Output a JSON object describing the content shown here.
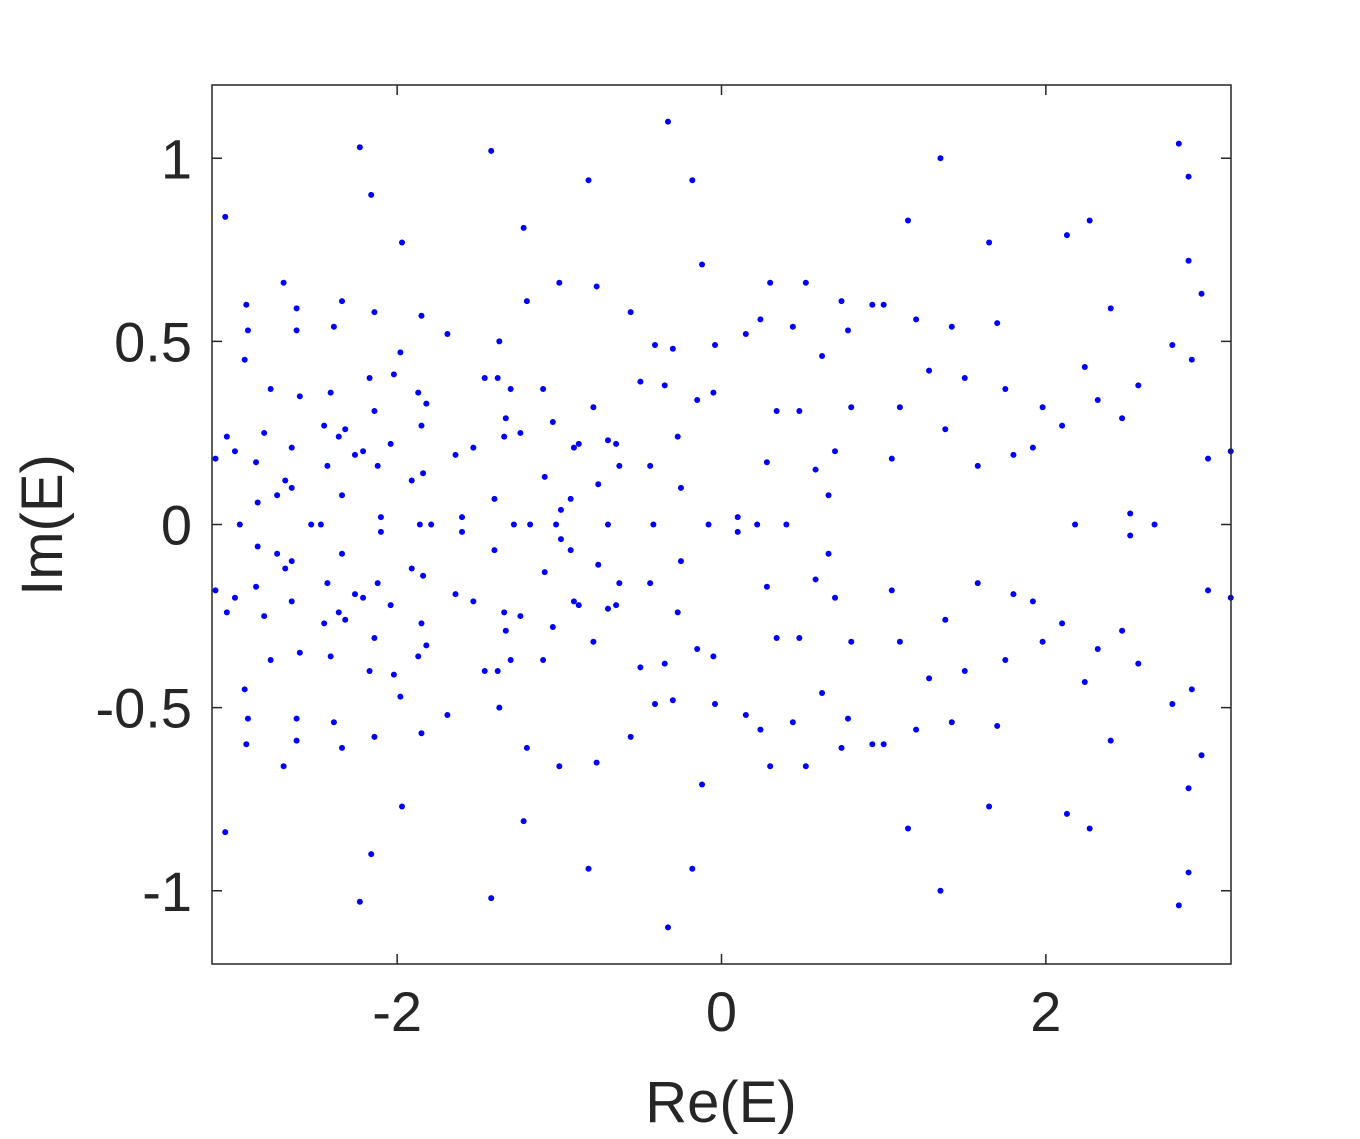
{
  "chart_data": {
    "type": "scatter",
    "title": "",
    "xlabel": "Re(E)",
    "ylabel": "Im(E)",
    "xlim": [
      -3.1416,
      3.1416
    ],
    "ylim": [
      -1.2,
      1.2
    ],
    "xticks": [
      -2,
      0,
      2
    ],
    "yticks": [
      -1,
      -0.5,
      0,
      0.5,
      1
    ],
    "xtick_labels": [
      "-2",
      "0",
      "2"
    ],
    "ytick_labels": [
      "-1",
      "-0.5",
      "0",
      "0.5",
      "1"
    ],
    "grid": false,
    "legend": "none",
    "marker_color": "#0000ff",
    "axis_color": "#262626",
    "series": [
      {
        "values": [
          [
            -3.12,
            0.18
          ],
          [
            -3.12,
            -0.18
          ],
          [
            -3.06,
            0.84
          ],
          [
            -3.06,
            -0.84
          ],
          [
            -3.05,
            0.24
          ],
          [
            -3.05,
            -0.24
          ],
          [
            -3.0,
            0.2
          ],
          [
            -3.0,
            -0.2
          ],
          [
            -2.97,
            0.0
          ],
          [
            -2.94,
            0.45
          ],
          [
            -2.94,
            -0.45
          ],
          [
            -2.93,
            0.6
          ],
          [
            -2.93,
            -0.6
          ],
          [
            -2.92,
            0.53
          ],
          [
            -2.92,
            -0.53
          ],
          [
            -2.87,
            0.17
          ],
          [
            -2.87,
            -0.17
          ],
          [
            -2.86,
            0.06
          ],
          [
            -2.86,
            -0.06
          ],
          [
            -2.82,
            0.25
          ],
          [
            -2.82,
            -0.25
          ],
          [
            -2.78,
            0.37
          ],
          [
            -2.78,
            -0.37
          ],
          [
            -2.74,
            0.08
          ],
          [
            -2.74,
            -0.08
          ],
          [
            -2.7,
            0.66
          ],
          [
            -2.7,
            -0.66
          ],
          [
            -2.69,
            0.12
          ],
          [
            -2.69,
            -0.12
          ],
          [
            -2.65,
            0.1
          ],
          [
            -2.65,
            -0.1
          ],
          [
            -2.65,
            0.21
          ],
          [
            -2.65,
            -0.21
          ],
          [
            -2.62,
            0.59
          ],
          [
            -2.62,
            -0.59
          ],
          [
            -2.62,
            0.53
          ],
          [
            -2.62,
            -0.53
          ],
          [
            -2.6,
            0.35
          ],
          [
            -2.6,
            -0.35
          ],
          [
            -2.53,
            0.0
          ],
          [
            -2.47,
            0.0
          ],
          [
            -2.45,
            0.27
          ],
          [
            -2.45,
            -0.27
          ],
          [
            -2.43,
            0.16
          ],
          [
            -2.43,
            -0.16
          ],
          [
            -2.41,
            0.36
          ],
          [
            -2.41,
            -0.36
          ],
          [
            -2.39,
            0.54
          ],
          [
            -2.39,
            -0.54
          ],
          [
            -2.36,
            0.24
          ],
          [
            -2.36,
            -0.24
          ],
          [
            -2.34,
            0.61
          ],
          [
            -2.34,
            -0.61
          ],
          [
            -2.34,
            0.08
          ],
          [
            -2.34,
            -0.08
          ],
          [
            -2.32,
            0.26
          ],
          [
            -2.32,
            -0.26
          ],
          [
            -2.26,
            0.19
          ],
          [
            -2.26,
            -0.19
          ],
          [
            -2.23,
            1.03
          ],
          [
            -2.23,
            -1.03
          ],
          [
            -2.21,
            0.2
          ],
          [
            -2.21,
            -0.2
          ],
          [
            -2.17,
            0.4
          ],
          [
            -2.17,
            -0.4
          ],
          [
            -2.16,
            0.9
          ],
          [
            -2.16,
            -0.9
          ],
          [
            -2.14,
            0.31
          ],
          [
            -2.14,
            -0.31
          ],
          [
            -2.14,
            0.58
          ],
          [
            -2.14,
            -0.58
          ],
          [
            -2.12,
            0.16
          ],
          [
            -2.12,
            -0.16
          ],
          [
            -2.1,
            0.02
          ],
          [
            -2.1,
            -0.02
          ],
          [
            -2.04,
            0.22
          ],
          [
            -2.04,
            -0.22
          ],
          [
            -2.02,
            0.41
          ],
          [
            -2.02,
            -0.41
          ],
          [
            -1.98,
            0.47
          ],
          [
            -1.98,
            -0.47
          ],
          [
            -1.97,
            0.77
          ],
          [
            -1.97,
            -0.77
          ],
          [
            -1.91,
            0.12
          ],
          [
            -1.91,
            -0.12
          ],
          [
            -1.87,
            0.36
          ],
          [
            -1.87,
            -0.36
          ],
          [
            -1.86,
            0.0
          ],
          [
            -1.85,
            0.57
          ],
          [
            -1.85,
            -0.57
          ],
          [
            -1.85,
            0.27
          ],
          [
            -1.85,
            -0.27
          ],
          [
            -1.84,
            0.14
          ],
          [
            -1.84,
            -0.14
          ],
          [
            -1.82,
            0.33
          ],
          [
            -1.82,
            -0.33
          ],
          [
            -1.79,
            0.0
          ],
          [
            -1.69,
            0.52
          ],
          [
            -1.69,
            -0.52
          ],
          [
            -1.64,
            0.19
          ],
          [
            -1.64,
            -0.19
          ],
          [
            -1.6,
            0.02
          ],
          [
            -1.6,
            -0.02
          ],
          [
            -1.53,
            0.21
          ],
          [
            -1.53,
            -0.21
          ],
          [
            -1.46,
            0.4
          ],
          [
            -1.46,
            -0.4
          ],
          [
            -1.42,
            1.02
          ],
          [
            -1.42,
            -1.02
          ],
          [
            -1.4,
            0.07
          ],
          [
            -1.4,
            -0.07
          ],
          [
            -1.38,
            0.4
          ],
          [
            -1.38,
            -0.4
          ],
          [
            -1.37,
            0.5
          ],
          [
            -1.37,
            -0.5
          ],
          [
            -1.34,
            0.24
          ],
          [
            -1.34,
            -0.24
          ],
          [
            -1.33,
            0.29
          ],
          [
            -1.33,
            -0.29
          ],
          [
            -1.3,
            0.37
          ],
          [
            -1.3,
            -0.37
          ],
          [
            -1.28,
            0.0
          ],
          [
            -1.24,
            0.25
          ],
          [
            -1.24,
            -0.25
          ],
          [
            -1.22,
            0.81
          ],
          [
            -1.22,
            -0.81
          ],
          [
            -1.2,
            0.61
          ],
          [
            -1.2,
            -0.61
          ],
          [
            -1.18,
            0.0
          ],
          [
            -1.1,
            0.37
          ],
          [
            -1.1,
            -0.37
          ],
          [
            -1.09,
            0.13
          ],
          [
            -1.09,
            -0.13
          ],
          [
            -1.04,
            0.28
          ],
          [
            -1.04,
            -0.28
          ],
          [
            -1.02,
            0.0
          ],
          [
            -1.0,
            0.66
          ],
          [
            -1.0,
            -0.66
          ],
          [
            -0.99,
            0.04
          ],
          [
            -0.99,
            -0.04
          ],
          [
            -0.93,
            0.07
          ],
          [
            -0.93,
            -0.07
          ],
          [
            -0.91,
            0.21
          ],
          [
            -0.91,
            -0.21
          ],
          [
            -0.88,
            0.22
          ],
          [
            -0.88,
            -0.22
          ],
          [
            -0.82,
            0.94
          ],
          [
            -0.82,
            -0.94
          ],
          [
            -0.79,
            0.32
          ],
          [
            -0.79,
            -0.32
          ],
          [
            -0.77,
            0.65
          ],
          [
            -0.77,
            -0.65
          ],
          [
            -0.76,
            0.11
          ],
          [
            -0.76,
            -0.11
          ],
          [
            -0.7,
            0.0
          ],
          [
            -0.7,
            0.23
          ],
          [
            -0.7,
            -0.23
          ],
          [
            -0.65,
            0.22
          ],
          [
            -0.65,
            -0.22
          ],
          [
            -0.63,
            0.16
          ],
          [
            -0.63,
            -0.16
          ],
          [
            -0.56,
            0.58
          ],
          [
            -0.56,
            -0.58
          ],
          [
            -0.5,
            0.39
          ],
          [
            -0.5,
            -0.39
          ],
          [
            -0.44,
            0.16
          ],
          [
            -0.44,
            -0.16
          ],
          [
            -0.42,
            0.0
          ],
          [
            -0.41,
            0.49
          ],
          [
            -0.41,
            -0.49
          ],
          [
            -0.35,
            0.38
          ],
          [
            -0.35,
            -0.38
          ],
          [
            -0.33,
            1.1
          ],
          [
            -0.33,
            -1.1
          ],
          [
            -0.3,
            0.48
          ],
          [
            -0.3,
            -0.48
          ],
          [
            -0.27,
            0.24
          ],
          [
            -0.27,
            -0.24
          ],
          [
            -0.25,
            0.1
          ],
          [
            -0.25,
            -0.1
          ],
          [
            -0.18,
            0.94
          ],
          [
            -0.18,
            -0.94
          ],
          [
            -0.15,
            0.34
          ],
          [
            -0.15,
            -0.34
          ],
          [
            -0.12,
            0.71
          ],
          [
            -0.12,
            -0.71
          ],
          [
            -0.08,
            0.0
          ],
          [
            -0.05,
            0.36
          ],
          [
            -0.05,
            -0.36
          ],
          [
            -0.04,
            0.49
          ],
          [
            -0.04,
            -0.49
          ],
          [
            0.1,
            0.02
          ],
          [
            0.1,
            -0.02
          ],
          [
            0.15,
            0.52
          ],
          [
            0.15,
            -0.52
          ],
          [
            0.22,
            0.0
          ],
          [
            0.24,
            0.56
          ],
          [
            0.24,
            -0.56
          ],
          [
            0.28,
            0.17
          ],
          [
            0.28,
            -0.17
          ],
          [
            0.3,
            0.66
          ],
          [
            0.3,
            -0.66
          ],
          [
            0.34,
            0.31
          ],
          [
            0.34,
            -0.31
          ],
          [
            0.4,
            0.0
          ],
          [
            0.44,
            0.54
          ],
          [
            0.44,
            -0.54
          ],
          [
            0.48,
            0.31
          ],
          [
            0.48,
            -0.31
          ],
          [
            0.52,
            0.66
          ],
          [
            0.52,
            -0.66
          ],
          [
            0.58,
            0.15
          ],
          [
            0.58,
            -0.15
          ],
          [
            0.62,
            0.46
          ],
          [
            0.62,
            -0.46
          ],
          [
            0.66,
            0.08
          ],
          [
            0.66,
            -0.08
          ],
          [
            0.7,
            0.2
          ],
          [
            0.7,
            -0.2
          ],
          [
            0.74,
            0.61
          ],
          [
            0.74,
            -0.61
          ],
          [
            0.78,
            0.53
          ],
          [
            0.78,
            -0.53
          ],
          [
            0.8,
            0.32
          ],
          [
            0.8,
            -0.32
          ],
          [
            0.93,
            0.6
          ],
          [
            0.93,
            -0.6
          ],
          [
            1.0,
            0.6
          ],
          [
            1.0,
            -0.6
          ],
          [
            1.05,
            0.18
          ],
          [
            1.05,
            -0.18
          ],
          [
            1.1,
            0.32
          ],
          [
            1.1,
            -0.32
          ],
          [
            1.15,
            0.83
          ],
          [
            1.15,
            -0.83
          ],
          [
            1.2,
            0.56
          ],
          [
            1.2,
            -0.56
          ],
          [
            1.28,
            0.42
          ],
          [
            1.28,
            -0.42
          ],
          [
            1.35,
            1.0
          ],
          [
            1.35,
            -1.0
          ],
          [
            1.38,
            0.26
          ],
          [
            1.38,
            -0.26
          ],
          [
            1.42,
            0.54
          ],
          [
            1.42,
            -0.54
          ],
          [
            1.5,
            0.4
          ],
          [
            1.5,
            -0.4
          ],
          [
            1.58,
            0.16
          ],
          [
            1.58,
            -0.16
          ],
          [
            1.65,
            0.77
          ],
          [
            1.65,
            -0.77
          ],
          [
            1.7,
            0.55
          ],
          [
            1.7,
            -0.55
          ],
          [
            1.75,
            0.37
          ],
          [
            1.75,
            -0.37
          ],
          [
            1.8,
            0.19
          ],
          [
            1.8,
            -0.19
          ],
          [
            1.92,
            0.21
          ],
          [
            1.92,
            -0.21
          ],
          [
            1.98,
            0.32
          ],
          [
            1.98,
            -0.32
          ],
          [
            2.1,
            0.27
          ],
          [
            2.1,
            -0.27
          ],
          [
            2.13,
            0.79
          ],
          [
            2.13,
            -0.79
          ],
          [
            2.18,
            0.0
          ],
          [
            2.24,
            0.43
          ],
          [
            2.24,
            -0.43
          ],
          [
            2.27,
            0.83
          ],
          [
            2.27,
            -0.83
          ],
          [
            2.32,
            0.34
          ],
          [
            2.32,
            -0.34
          ],
          [
            2.4,
            0.59
          ],
          [
            2.4,
            -0.59
          ],
          [
            2.47,
            0.29
          ],
          [
            2.47,
            -0.29
          ],
          [
            2.52,
            0.03
          ],
          [
            2.52,
            -0.03
          ],
          [
            2.57,
            0.38
          ],
          [
            2.57,
            -0.38
          ],
          [
            2.67,
            0.0
          ],
          [
            2.78,
            0.49
          ],
          [
            2.78,
            -0.49
          ],
          [
            2.82,
            1.04
          ],
          [
            2.82,
            -1.04
          ],
          [
            2.88,
            0.95
          ],
          [
            2.88,
            -0.95
          ],
          [
            2.88,
            0.72
          ],
          [
            2.88,
            -0.72
          ],
          [
            2.9,
            0.45
          ],
          [
            2.9,
            -0.45
          ],
          [
            2.96,
            0.63
          ],
          [
            2.96,
            -0.63
          ],
          [
            3.0,
            0.18
          ],
          [
            3.0,
            -0.18
          ],
          [
            3.14,
            0.2
          ],
          [
            3.14,
            -0.2
          ]
        ]
      }
    ]
  }
}
